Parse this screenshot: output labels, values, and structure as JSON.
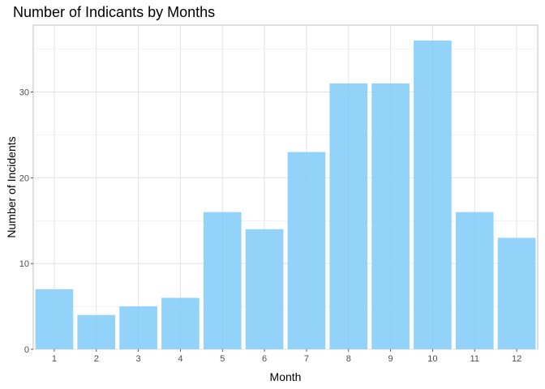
{
  "chart_data": {
    "type": "bar",
    "title": "Number of Indicants by Months",
    "xlabel": "Month",
    "ylabel": "Number of Incidents",
    "categories": [
      "1",
      "2",
      "3",
      "4",
      "5",
      "6",
      "7",
      "8",
      "9",
      "10",
      "11",
      "12"
    ],
    "values": [
      7,
      4,
      5,
      6,
      16,
      14,
      23,
      31,
      31,
      36,
      16,
      13
    ],
    "ylim": [
      0,
      37.8
    ],
    "yticks": [
      0,
      10,
      20,
      30
    ],
    "grid": true,
    "legend": "none",
    "bar_color": "#87CEFA"
  }
}
